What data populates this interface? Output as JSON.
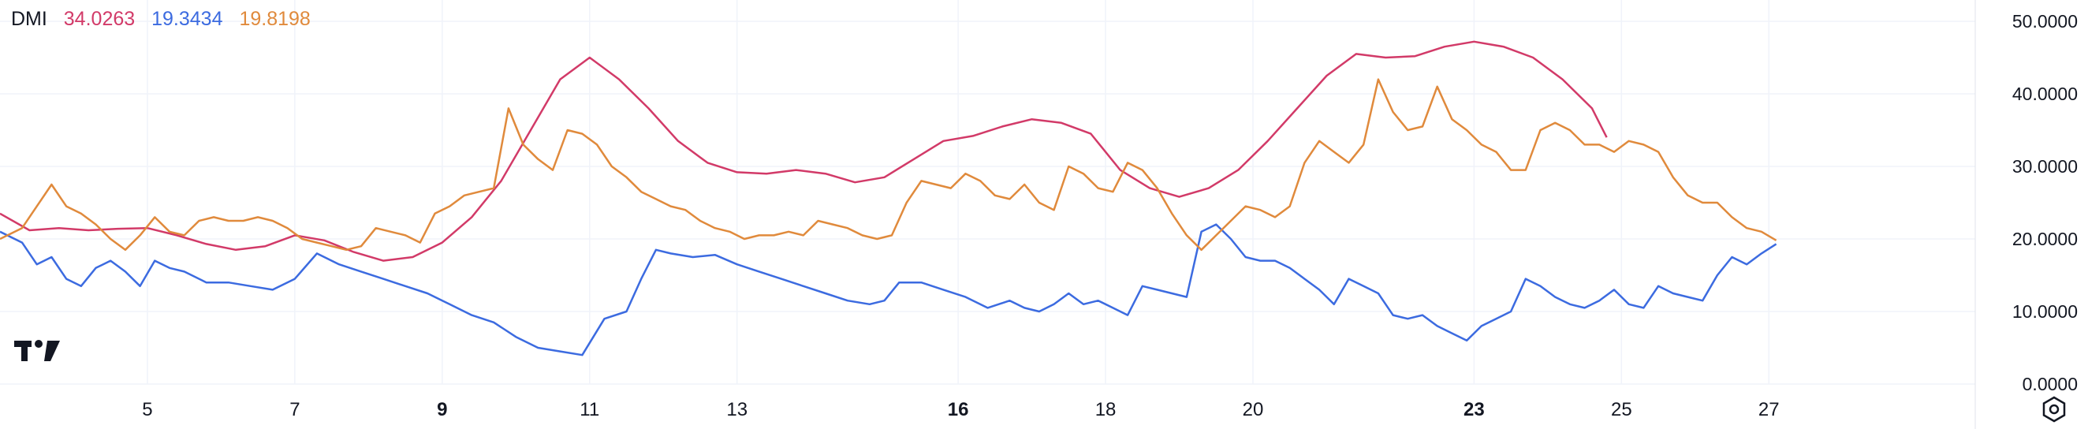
{
  "legend": {
    "indicator": "DMI",
    "adx_value": "34.0263",
    "plus_di_value": "19.3434",
    "minus_di_value": "19.8198"
  },
  "colors": {
    "adx": "#d23a68",
    "plus_di": "#3c6be0",
    "minus_di": "#e08a3c",
    "grid": "#f0f3fa",
    "text": "#131722"
  },
  "icons": [
    "tradingview-logo-icon",
    "settings-icon"
  ],
  "chart_data": {
    "type": "line",
    "ylim": [
      0,
      50
    ],
    "xlim": [
      3.0,
      29.8
    ],
    "y_ticks": [
      "50.0000",
      "40.0000",
      "30.0000",
      "20.0000",
      "10.0000",
      "0.0000"
    ],
    "x_ticks": [
      {
        "x": 5,
        "label": "5",
        "bold": false
      },
      {
        "x": 7,
        "label": "7",
        "bold": false
      },
      {
        "x": 9,
        "label": "9",
        "bold": true
      },
      {
        "x": 11,
        "label": "11",
        "bold": false
      },
      {
        "x": 13,
        "label": "13",
        "bold": false
      },
      {
        "x": 16,
        "label": "16",
        "bold": true
      },
      {
        "x": 18,
        "label": "18",
        "bold": false
      },
      {
        "x": 20,
        "label": "20",
        "bold": false
      },
      {
        "x": 23,
        "label": "23",
        "bold": true
      },
      {
        "x": 25,
        "label": "25",
        "bold": false
      },
      {
        "x": 27,
        "label": "27",
        "bold": false
      }
    ],
    "series": [
      {
        "key": "adx",
        "points": [
          [
            3.0,
            23.5
          ],
          [
            3.4,
            21.2
          ],
          [
            3.8,
            21.5
          ],
          [
            4.2,
            21.2
          ],
          [
            4.6,
            21.4
          ],
          [
            5.0,
            21.5
          ],
          [
            5.4,
            20.5
          ],
          [
            5.8,
            19.3
          ],
          [
            6.2,
            18.5
          ],
          [
            6.6,
            19.0
          ],
          [
            7.0,
            20.5
          ],
          [
            7.4,
            19.8
          ],
          [
            7.8,
            18.2
          ],
          [
            8.2,
            17.0
          ],
          [
            8.6,
            17.5
          ],
          [
            9.0,
            19.5
          ],
          [
            9.4,
            23.0
          ],
          [
            9.8,
            28.0
          ],
          [
            10.2,
            35.0
          ],
          [
            10.6,
            42.0
          ],
          [
            11.0,
            45.0
          ],
          [
            11.4,
            42.0
          ],
          [
            11.8,
            38.0
          ],
          [
            12.2,
            33.5
          ],
          [
            12.6,
            30.5
          ],
          [
            13.0,
            29.2
          ],
          [
            13.4,
            29.0
          ],
          [
            13.8,
            29.5
          ],
          [
            14.2,
            29.0
          ],
          [
            14.6,
            27.8
          ],
          [
            15.0,
            28.5
          ],
          [
            15.4,
            31.0
          ],
          [
            15.8,
            33.5
          ],
          [
            16.2,
            34.2
          ],
          [
            16.6,
            35.5
          ],
          [
            17.0,
            36.5
          ],
          [
            17.4,
            36.0
          ],
          [
            17.8,
            34.5
          ],
          [
            18.2,
            29.5
          ],
          [
            18.6,
            27.0
          ],
          [
            19.0,
            25.8
          ],
          [
            19.4,
            27.0
          ],
          [
            19.8,
            29.5
          ],
          [
            20.2,
            33.5
          ],
          [
            20.6,
            38.0
          ],
          [
            21.0,
            42.5
          ],
          [
            21.4,
            45.5
          ],
          [
            21.8,
            45.0
          ],
          [
            22.2,
            45.2
          ],
          [
            22.6,
            46.5
          ],
          [
            23.0,
            47.2
          ],
          [
            23.4,
            46.5
          ],
          [
            23.8,
            45.0
          ],
          [
            24.2,
            42.0
          ],
          [
            24.6,
            38.0
          ],
          [
            24.8,
            34.0
          ]
        ]
      },
      {
        "key": "plus_di",
        "points": [
          [
            3.0,
            21.0
          ],
          [
            3.3,
            19.5
          ],
          [
            3.5,
            16.5
          ],
          [
            3.7,
            17.5
          ],
          [
            3.9,
            14.5
          ],
          [
            4.1,
            13.5
          ],
          [
            4.3,
            16.0
          ],
          [
            4.5,
            17.0
          ],
          [
            4.7,
            15.5
          ],
          [
            4.9,
            13.5
          ],
          [
            5.1,
            17.0
          ],
          [
            5.3,
            16.0
          ],
          [
            5.5,
            15.5
          ],
          [
            5.8,
            14.0
          ],
          [
            6.1,
            14.0
          ],
          [
            6.4,
            13.5
          ],
          [
            6.7,
            13.0
          ],
          [
            7.0,
            14.5
          ],
          [
            7.3,
            18.0
          ],
          [
            7.6,
            16.5
          ],
          [
            7.9,
            15.5
          ],
          [
            8.2,
            14.5
          ],
          [
            8.5,
            13.5
          ],
          [
            8.8,
            12.5
          ],
          [
            9.1,
            11.0
          ],
          [
            9.4,
            9.5
          ],
          [
            9.7,
            8.5
          ],
          [
            10.0,
            6.5
          ],
          [
            10.3,
            5.0
          ],
          [
            10.6,
            4.5
          ],
          [
            10.9,
            4.0
          ],
          [
            11.2,
            9.0
          ],
          [
            11.5,
            10.0
          ],
          [
            11.7,
            14.5
          ],
          [
            11.9,
            18.5
          ],
          [
            12.1,
            18.0
          ],
          [
            12.4,
            17.5
          ],
          [
            12.7,
            17.8
          ],
          [
            13.0,
            16.5
          ],
          [
            13.3,
            15.5
          ],
          [
            13.6,
            14.5
          ],
          [
            13.9,
            13.5
          ],
          [
            14.2,
            12.5
          ],
          [
            14.5,
            11.5
          ],
          [
            14.8,
            11.0
          ],
          [
            15.0,
            11.5
          ],
          [
            15.2,
            14.0
          ],
          [
            15.5,
            14.0
          ],
          [
            15.8,
            13.0
          ],
          [
            16.1,
            12.0
          ],
          [
            16.4,
            10.5
          ],
          [
            16.7,
            11.5
          ],
          [
            16.9,
            10.5
          ],
          [
            17.1,
            10.0
          ],
          [
            17.3,
            11.0
          ],
          [
            17.5,
            12.5
          ],
          [
            17.7,
            11.0
          ],
          [
            17.9,
            11.5
          ],
          [
            18.1,
            10.5
          ],
          [
            18.3,
            9.5
          ],
          [
            18.5,
            13.5
          ],
          [
            18.7,
            13.0
          ],
          [
            18.9,
            12.5
          ],
          [
            19.1,
            12.0
          ],
          [
            19.3,
            21.0
          ],
          [
            19.5,
            22.0
          ],
          [
            19.7,
            20.0
          ],
          [
            19.9,
            17.5
          ],
          [
            20.1,
            17.0
          ],
          [
            20.3,
            17.0
          ],
          [
            20.5,
            16.0
          ],
          [
            20.7,
            14.5
          ],
          [
            20.9,
            13.0
          ],
          [
            21.1,
            11.0
          ],
          [
            21.3,
            14.5
          ],
          [
            21.5,
            13.5
          ],
          [
            21.7,
            12.5
          ],
          [
            21.9,
            9.5
          ],
          [
            22.1,
            9.0
          ],
          [
            22.3,
            9.5
          ],
          [
            22.5,
            8.0
          ],
          [
            22.7,
            7.0
          ],
          [
            22.9,
            6.0
          ],
          [
            23.1,
            8.0
          ],
          [
            23.3,
            9.0
          ],
          [
            23.5,
            10.0
          ],
          [
            23.7,
            14.5
          ],
          [
            23.9,
            13.5
          ],
          [
            24.1,
            12.0
          ],
          [
            24.3,
            11.0
          ],
          [
            24.5,
            10.5
          ],
          [
            24.7,
            11.5
          ],
          [
            24.9,
            13.0
          ],
          [
            25.1,
            11.0
          ],
          [
            25.3,
            10.5
          ],
          [
            25.5,
            13.5
          ],
          [
            25.7,
            12.5
          ],
          [
            25.9,
            12.0
          ],
          [
            26.1,
            11.5
          ],
          [
            26.3,
            15.0
          ],
          [
            26.5,
            17.5
          ],
          [
            26.7,
            16.5
          ],
          [
            26.9,
            18.0
          ],
          [
            27.1,
            19.3
          ]
        ]
      },
      {
        "key": "minus_di",
        "points": [
          [
            3.0,
            20.0
          ],
          [
            3.3,
            21.5
          ],
          [
            3.5,
            24.5
          ],
          [
            3.7,
            27.5
          ],
          [
            3.9,
            24.5
          ],
          [
            4.1,
            23.5
          ],
          [
            4.3,
            22.0
          ],
          [
            4.5,
            20.0
          ],
          [
            4.7,
            18.5
          ],
          [
            4.9,
            20.5
          ],
          [
            5.1,
            23.0
          ],
          [
            5.3,
            21.0
          ],
          [
            5.5,
            20.5
          ],
          [
            5.7,
            22.5
          ],
          [
            5.9,
            23.0
          ],
          [
            6.1,
            22.5
          ],
          [
            6.3,
            22.5
          ],
          [
            6.5,
            23.0
          ],
          [
            6.7,
            22.5
          ],
          [
            6.9,
            21.5
          ],
          [
            7.1,
            20.0
          ],
          [
            7.3,
            19.5
          ],
          [
            7.5,
            19.0
          ],
          [
            7.7,
            18.5
          ],
          [
            7.9,
            19.0
          ],
          [
            8.1,
            21.5
          ],
          [
            8.3,
            21.0
          ],
          [
            8.5,
            20.5
          ],
          [
            8.7,
            19.5
          ],
          [
            8.9,
            23.5
          ],
          [
            9.1,
            24.5
          ],
          [
            9.3,
            26.0
          ],
          [
            9.5,
            26.5
          ],
          [
            9.7,
            27.0
          ],
          [
            9.9,
            38.0
          ],
          [
            10.1,
            33.0
          ],
          [
            10.3,
            31.0
          ],
          [
            10.5,
            29.5
          ],
          [
            10.7,
            35.0
          ],
          [
            10.9,
            34.5
          ],
          [
            11.1,
            33.0
          ],
          [
            11.3,
            30.0
          ],
          [
            11.5,
            28.5
          ],
          [
            11.7,
            26.5
          ],
          [
            11.9,
            25.5
          ],
          [
            12.1,
            24.5
          ],
          [
            12.3,
            24.0
          ],
          [
            12.5,
            22.5
          ],
          [
            12.7,
            21.5
          ],
          [
            12.9,
            21.0
          ],
          [
            13.1,
            20.0
          ],
          [
            13.3,
            20.5
          ],
          [
            13.5,
            20.5
          ],
          [
            13.7,
            21.0
          ],
          [
            13.9,
            20.5
          ],
          [
            14.1,
            22.5
          ],
          [
            14.3,
            22.0
          ],
          [
            14.5,
            21.5
          ],
          [
            14.7,
            20.5
          ],
          [
            14.9,
            20.0
          ],
          [
            15.1,
            20.5
          ],
          [
            15.3,
            25.0
          ],
          [
            15.5,
            28.0
          ],
          [
            15.7,
            27.5
          ],
          [
            15.9,
            27.0
          ],
          [
            16.1,
            29.0
          ],
          [
            16.3,
            28.0
          ],
          [
            16.5,
            26.0
          ],
          [
            16.7,
            25.5
          ],
          [
            16.9,
            27.5
          ],
          [
            17.1,
            25.0
          ],
          [
            17.3,
            24.0
          ],
          [
            17.5,
            30.0
          ],
          [
            17.7,
            29.0
          ],
          [
            17.9,
            27.0
          ],
          [
            18.1,
            26.5
          ],
          [
            18.3,
            30.5
          ],
          [
            18.5,
            29.5
          ],
          [
            18.7,
            27.0
          ],
          [
            18.9,
            23.5
          ],
          [
            19.1,
            20.5
          ],
          [
            19.3,
            18.5
          ],
          [
            19.5,
            20.5
          ],
          [
            19.7,
            22.5
          ],
          [
            19.9,
            24.5
          ],
          [
            20.1,
            24.0
          ],
          [
            20.3,
            23.0
          ],
          [
            20.5,
            24.5
          ],
          [
            20.7,
            30.5
          ],
          [
            20.9,
            33.5
          ],
          [
            21.1,
            32.0
          ],
          [
            21.3,
            30.5
          ],
          [
            21.5,
            33.0
          ],
          [
            21.7,
            42.0
          ],
          [
            21.9,
            37.5
          ],
          [
            22.1,
            35.0
          ],
          [
            22.3,
            35.5
          ],
          [
            22.5,
            41.0
          ],
          [
            22.7,
            36.5
          ],
          [
            22.9,
            35.0
          ],
          [
            23.1,
            33.0
          ],
          [
            23.3,
            32.0
          ],
          [
            23.5,
            29.5
          ],
          [
            23.7,
            29.5
          ],
          [
            23.9,
            35.0
          ],
          [
            24.1,
            36.0
          ],
          [
            24.3,
            35.0
          ],
          [
            24.5,
            33.0
          ],
          [
            24.7,
            33.0
          ],
          [
            24.9,
            32.0
          ],
          [
            25.1,
            33.5
          ],
          [
            25.3,
            33.0
          ],
          [
            25.5,
            32.0
          ],
          [
            25.7,
            28.5
          ],
          [
            25.9,
            26.0
          ],
          [
            26.1,
            25.0
          ],
          [
            26.3,
            25.0
          ],
          [
            26.5,
            23.0
          ],
          [
            26.7,
            21.5
          ],
          [
            26.9,
            21.0
          ],
          [
            27.1,
            19.8
          ]
        ]
      }
    ]
  }
}
